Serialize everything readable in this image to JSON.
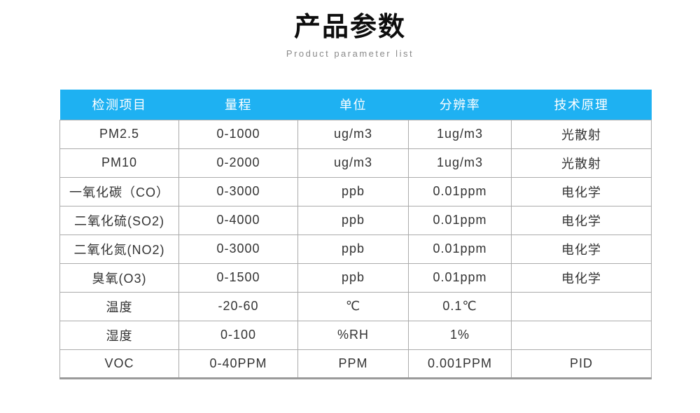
{
  "page": {
    "title": "产品参数",
    "subtitle": "Product parameter list"
  },
  "theme": {
    "header_bg": "#1EB1F2",
    "header_text": "#FFFFFF",
    "grid_border": "#ABABAB",
    "bottom_border": "#9A9A9A",
    "body_text": "#333333"
  },
  "table": {
    "headers": [
      "检测项目",
      "量程",
      "单位",
      "分辨率",
      "技术原理"
    ],
    "rows": [
      {
        "item": "PM2.5",
        "range": "0-1000",
        "unit": "ug/m3",
        "resolution": "1ug/m3",
        "principle": "光散射"
      },
      {
        "item": "PM10",
        "range": "0-2000",
        "unit": "ug/m3",
        "resolution": "1ug/m3",
        "principle": "光散射"
      },
      {
        "item": "一氧化碳（CO）",
        "range": "0-3000",
        "unit": "ppb",
        "resolution": "0.01ppm",
        "principle": "电化学"
      },
      {
        "item": "二氧化硫(SO2)",
        "range": "0-4000",
        "unit": "ppb",
        "resolution": "0.01ppm",
        "principle": "电化学"
      },
      {
        "item": "二氧化氮(NO2)",
        "range": "0-3000",
        "unit": "ppb",
        "resolution": "0.01ppm",
        "principle": "电化学"
      },
      {
        "item": "臭氧(O3)",
        "range": "0-1500",
        "unit": "ppb",
        "resolution": "0.01ppm",
        "principle": "电化学"
      },
      {
        "item": "温度",
        "range": "-20-60",
        "unit": "℃",
        "resolution": "0.1℃",
        "principle": ""
      },
      {
        "item": "湿度",
        "range": "0-100",
        "unit": "%RH",
        "resolution": "1%",
        "principle": ""
      },
      {
        "item": "VOC",
        "range": "0-40PPM",
        "unit": "PPM",
        "resolution": "0.001PPM",
        "principle": "PID"
      }
    ]
  }
}
